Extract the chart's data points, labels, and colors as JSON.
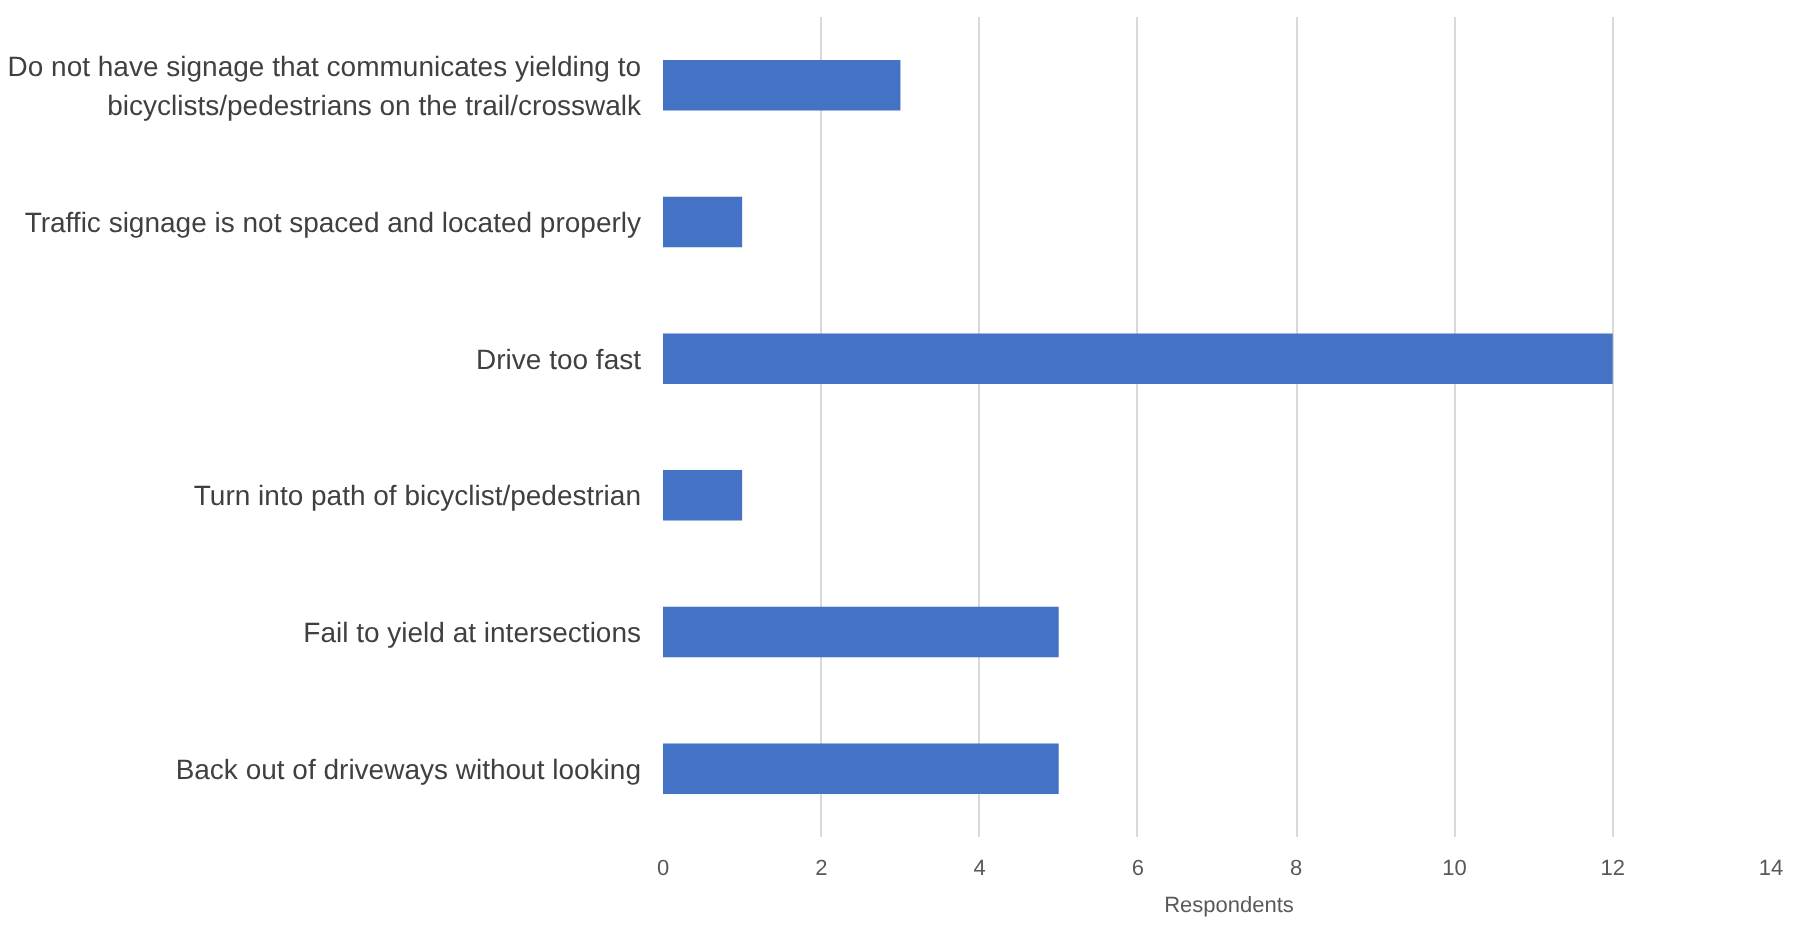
{
  "chart_data": {
    "type": "bar",
    "orientation": "horizontal",
    "categories": [
      "Do not have signage that communicates yielding to bicyclists/pedestrians on the trail/crosswalk",
      "Traffic signage is not spaced and located properly",
      "Drive too fast",
      "Turn into path of bicyclist/pedestrian",
      "Fail to yield at intersections",
      "Back out of driveways without looking"
    ],
    "series": [
      {
        "name": "Respondents",
        "color": "#4472c4",
        "values": [
          3,
          1,
          12,
          1,
          5,
          5
        ]
      }
    ],
    "xlim": [
      0,
      14
    ],
    "xticks": [
      0,
      2,
      4,
      6,
      8,
      10,
      12,
      14
    ],
    "grid": "x",
    "legend": "bottom"
  }
}
